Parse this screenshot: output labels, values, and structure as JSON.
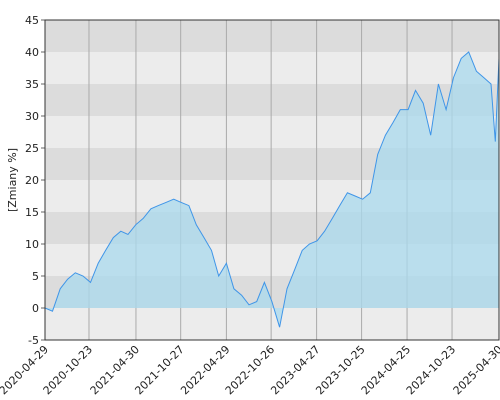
{
  "chart_data": {
    "type": "line",
    "y_label": "[Zmiany %]",
    "x": [
      "2020-04-29",
      "2020-05-29",
      "2020-06-29",
      "2020-07-29",
      "2020-08-29",
      "2020-09-29",
      "2020-10-29",
      "2020-11-29",
      "2020-12-29",
      "2021-01-29",
      "2021-02-28",
      "2021-03-29",
      "2021-04-29",
      "2021-05-29",
      "2021-06-29",
      "2021-07-29",
      "2021-08-29",
      "2021-09-29",
      "2021-10-29",
      "2021-11-29",
      "2021-12-29",
      "2022-01-29",
      "2022-02-28",
      "2022-03-29",
      "2022-04-29",
      "2022-05-29",
      "2022-06-29",
      "2022-07-29",
      "2022-08-29",
      "2022-09-29",
      "2022-10-29",
      "2022-11-29",
      "2022-12-29",
      "2023-01-29",
      "2023-02-28",
      "2023-03-29",
      "2023-04-29",
      "2023-05-29",
      "2023-06-29",
      "2023-07-29",
      "2023-08-29",
      "2023-09-29",
      "2023-10-29",
      "2023-11-29",
      "2023-12-29",
      "2024-01-29",
      "2024-02-29",
      "2024-03-29",
      "2024-04-29",
      "2024-05-29",
      "2024-06-29",
      "2024-07-29",
      "2024-08-29",
      "2024-09-29",
      "2024-10-29",
      "2024-11-29",
      "2024-12-29",
      "2025-01-29",
      "2025-02-28",
      "2025-03-29",
      "2025-04-15",
      "2025-04-30"
    ],
    "series": [
      {
        "name": "Zmiany",
        "color": "#3f95e8",
        "fill": "#a9d9ee",
        "values": [
          0,
          -0.5,
          3,
          4.5,
          5.5,
          5,
          4,
          7,
          9,
          11,
          12,
          11.5,
          13,
          14,
          15.5,
          16,
          16.5,
          17,
          16.5,
          16,
          13,
          11,
          9,
          5,
          7,
          3,
          2,
          0.5,
          1,
          4,
          1,
          -3,
          3,
          6,
          9,
          10,
          10.5,
          12,
          14,
          16,
          18,
          17.5,
          17,
          18,
          24,
          27,
          29,
          31,
          31,
          34,
          32,
          27,
          35,
          31,
          36,
          39,
          40,
          37,
          36,
          35,
          26,
          39
        ]
      }
    ],
    "xlim": [
      "2020-04-29",
      "2025-04-30"
    ],
    "xticks": [
      "2020-04-29",
      "2020-10-23",
      "2021-04-30",
      "2021-10-27",
      "2022-04-29",
      "2022-10-26",
      "2023-04-27",
      "2023-10-25",
      "2024-04-25",
      "2024-10-23",
      "2025-04-30"
    ],
    "ylim": [
      -5,
      45
    ],
    "yticks": [
      -5,
      0,
      5,
      10,
      15,
      20,
      25,
      30,
      35,
      40,
      45
    ],
    "grid": true
  }
}
